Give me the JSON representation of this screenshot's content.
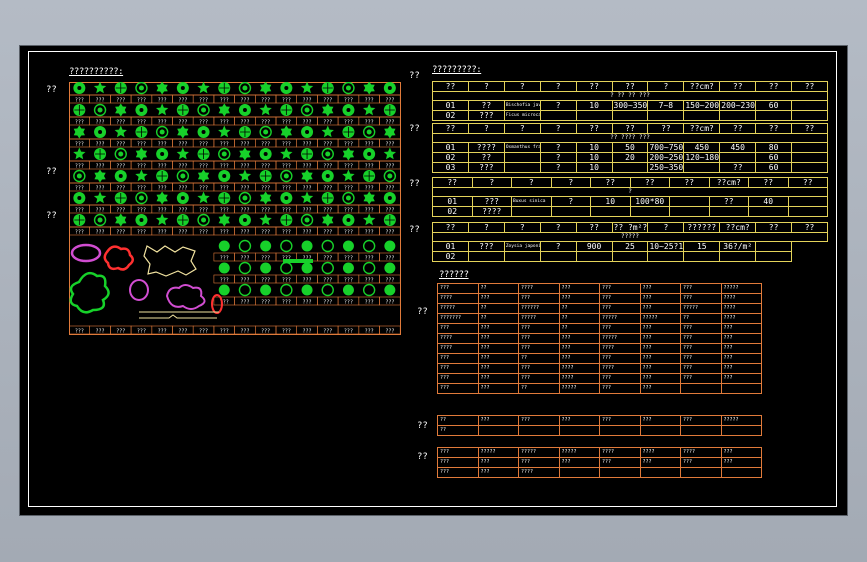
{
  "side_labels": [
    "??",
    "??",
    "??",
    "??",
    "??",
    "??",
    "??",
    "??",
    "??",
    "??"
  ],
  "legend": {
    "title": "??????????:",
    "cell_label": "???"
  },
  "list_section": {
    "title": "??????",
    "main_rows": [
      [
        "???",
        "??",
        "????",
        "???",
        "???",
        "???",
        "???",
        "?????"
      ],
      [
        "????",
        "???",
        "???",
        "???",
        "???",
        "???",
        "???",
        "????"
      ],
      [
        "?????",
        "??",
        "??????",
        "??",
        "???",
        "???",
        "?????",
        "????"
      ],
      [
        "???????",
        "??",
        "?????",
        "??",
        "?????",
        "?????",
        "??",
        "????"
      ],
      [
        "???",
        "???",
        "???",
        "??",
        "???",
        "???",
        "???",
        "???"
      ],
      [
        "????",
        "???",
        "???",
        "???",
        "?????",
        "???",
        "???",
        "???"
      ],
      [
        "????",
        "???",
        "???",
        "???",
        "????",
        "???",
        "???",
        "???"
      ],
      [
        "???",
        "???",
        "??",
        "???",
        "???",
        "???",
        "???",
        "???"
      ],
      [
        "???",
        "???",
        "???",
        "????",
        "????",
        "???",
        "???",
        "???"
      ],
      [
        "???",
        "???",
        "???",
        "????",
        "???",
        "???",
        "???",
        "???"
      ],
      [
        "???",
        "???",
        "??",
        "?????",
        "???",
        "???",
        "",
        ""
      ]
    ],
    "mid_rows": [
      [
        "??",
        "???",
        "???",
        "???",
        "???",
        "???",
        "???",
        "?????"
      ],
      [
        "??",
        "",
        "",
        "",
        "",
        "",
        "",
        ""
      ]
    ],
    "bottom_rows": [
      [
        "???",
        "?????",
        "?????",
        "?????",
        "????",
        "????",
        "????",
        "???"
      ],
      [
        "???",
        "???",
        "???",
        "???",
        "???",
        "???",
        "???",
        "???"
      ],
      [
        "???",
        "???",
        "????",
        "",
        "",
        "",
        "",
        ""
      ]
    ]
  },
  "quantity_table": {
    "title": "?????????:",
    "sections": [
      {
        "header": [
          "??",
          "?",
          "?",
          "?",
          "??",
          "??",
          "?",
          "??cm?",
          "??",
          "??",
          "??"
        ],
        "sub": [
          "?",
          "??",
          "??",
          "???"
        ],
        "rows": [
          [
            "01",
            "??",
            "Bischofia javanica / Ficus",
            "?",
            "10",
            "300~350",
            "7~8",
            "150~200",
            "200~230",
            "60",
            ""
          ],
          [
            "02",
            "???",
            "Ficus microcarpa",
            "",
            "",
            "",
            "",
            "",
            "",
            "",
            ""
          ]
        ]
      },
      {
        "header": [
          "??",
          "?",
          "?",
          "?",
          "??",
          "??",
          "??",
          "??cm?",
          "??",
          "??",
          "??"
        ],
        "sub": [
          "??",
          "????",
          "???"
        ],
        "rows": [
          [
            "01",
            "????",
            "Osmanthus fragrans",
            "?",
            "10",
            "50",
            "700~750",
            "450",
            "450",
            "80",
            ""
          ],
          [
            "02",
            "??",
            "",
            "?",
            "10",
            "20",
            "200~250",
            "120~180",
            "",
            "60",
            ""
          ],
          [
            "03",
            "???",
            "",
            "?",
            "10",
            "",
            "250~350",
            "",
            "??",
            "60",
            ""
          ]
        ]
      },
      {
        "header": [
          "??",
          "?",
          "?",
          "?",
          "??",
          "??",
          "??",
          "??cm?",
          "??",
          "??"
        ],
        "sub": [
          "?"
        ],
        "rows": [
          [
            "01",
            "???",
            "Buxus sinica",
            "?",
            "10",
            "100*80",
            "",
            "??",
            "40",
            ""
          ],
          [
            "02",
            "????",
            "",
            "",
            "",
            "",
            "",
            "",
            "",
            ""
          ]
        ]
      },
      {
        "header": [
          "??",
          "?",
          "?",
          "?",
          "??",
          "?? ?m²?",
          "?",
          "??????",
          "??cm?",
          "??",
          "??"
        ],
        "sub": [
          "?????"
        ],
        "rows": [
          [
            "01",
            "???",
            "Zoysia japonica",
            "?",
            "900",
            "25",
            "10~25?10~20",
            "15",
            "36?/m²",
            ""
          ],
          [
            "02",
            "",
            "",
            "",
            "",
            "",
            "",
            "",
            "",
            ""
          ]
        ]
      }
    ]
  },
  "colors": {
    "symbol_green": "#17d12a",
    "grid_orange": "#e07a3a",
    "table_yellow": "#e4d35a",
    "frame_white": "#ffffff",
    "magenta": "#d14dd1",
    "red": "#ff3030"
  }
}
